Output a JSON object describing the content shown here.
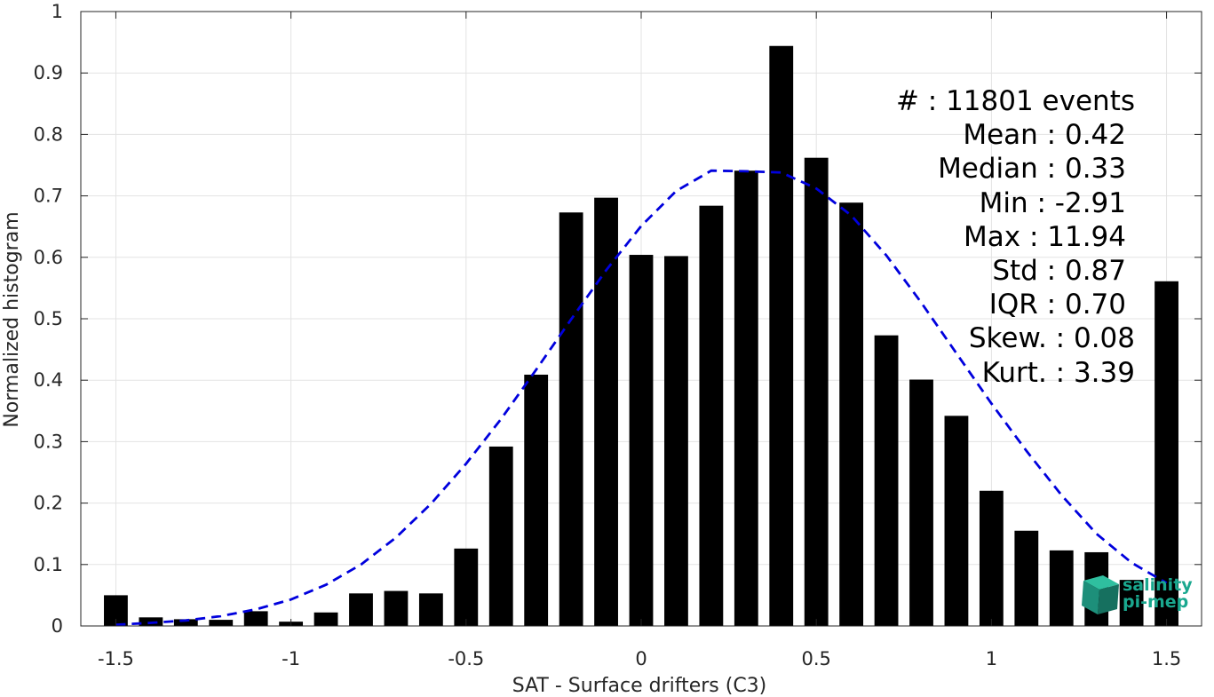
{
  "chart_data": {
    "type": "bar",
    "xlabel": "SAT - Surface drifters (C3)",
    "ylabel": "Normalized histogram",
    "xlim": [
      -1.6,
      1.6
    ],
    "ylim": [
      0,
      1
    ],
    "xticks": [
      -1.5,
      -1,
      -0.5,
      0,
      0.5,
      1,
      1.5
    ],
    "xtick_labels": [
      "-1.5",
      "-1",
      "-0.5",
      "0",
      "0.5",
      "1",
      "1.5"
    ],
    "yticks": [
      0,
      0.1,
      0.2,
      0.3,
      0.4,
      0.5,
      0.6,
      0.7,
      0.8,
      0.9,
      1
    ],
    "ytick_labels": [
      "0",
      "0.1",
      "0.2",
      "0.3",
      "0.4",
      "0.5",
      "0.6",
      "0.7",
      "0.8",
      "0.9",
      "1"
    ],
    "grid": true,
    "bar_color": "#000000",
    "fit_color": "#0000dd",
    "bins": [
      -1.5,
      -1.4,
      -1.3,
      -1.2,
      -1.1,
      -1.0,
      -0.9,
      -0.8,
      -0.7,
      -0.6,
      -0.5,
      -0.4,
      -0.3,
      -0.2,
      -0.1,
      0.0,
      0.1,
      0.2,
      0.3,
      0.4,
      0.5,
      0.6,
      0.7,
      0.8,
      0.9,
      1.0,
      1.1,
      1.2,
      1.3,
      1.4,
      1.5
    ],
    "values": [
      0.05,
      0.014,
      0.011,
      0.01,
      0.024,
      0.007,
      0.022,
      0.053,
      0.057,
      0.053,
      0.126,
      0.292,
      0.409,
      0.673,
      0.697,
      0.604,
      0.602,
      0.684,
      0.741,
      0.944,
      0.762,
      0.689,
      0.473,
      0.401,
      0.342,
      0.22,
      0.155,
      0.123,
      0.12,
      0.075,
      0.561
    ],
    "fit_curve": {
      "style": "dashed",
      "x": [
        -1.5,
        -1.4,
        -1.3,
        -1.2,
        -1.1,
        -1.0,
        -0.9,
        -0.8,
        -0.7,
        -0.6,
        -0.5,
        -0.4,
        -0.3,
        -0.2,
        -0.1,
        0.0,
        0.1,
        0.2,
        0.3,
        0.4,
        0.5,
        0.6,
        0.7,
        0.8,
        0.9,
        1.0,
        1.1,
        1.2,
        1.3,
        1.4,
        1.5
      ],
      "y": [
        0.002,
        0.005,
        0.009,
        0.016,
        0.027,
        0.043,
        0.067,
        0.1,
        0.144,
        0.199,
        0.264,
        0.337,
        0.417,
        0.499,
        0.579,
        0.651,
        0.708,
        0.741,
        0.74,
        0.738,
        0.712,
        0.668,
        0.603,
        0.526,
        0.444,
        0.362,
        0.285,
        0.213,
        0.15,
        0.103,
        0.07
      ]
    },
    "stats_lines": [
      "#  : 11801 events",
      "Mean : 0.42",
      "Median : 0.33",
      "Min : -2.91",
      "Max : 11.94",
      "Std : 0.87",
      "IQR : 0.70",
      "Skew. : 0.08",
      "Kurt. : 3.39"
    ]
  },
  "logo": {
    "line1": "salinity",
    "line2": "pi-mep"
  }
}
